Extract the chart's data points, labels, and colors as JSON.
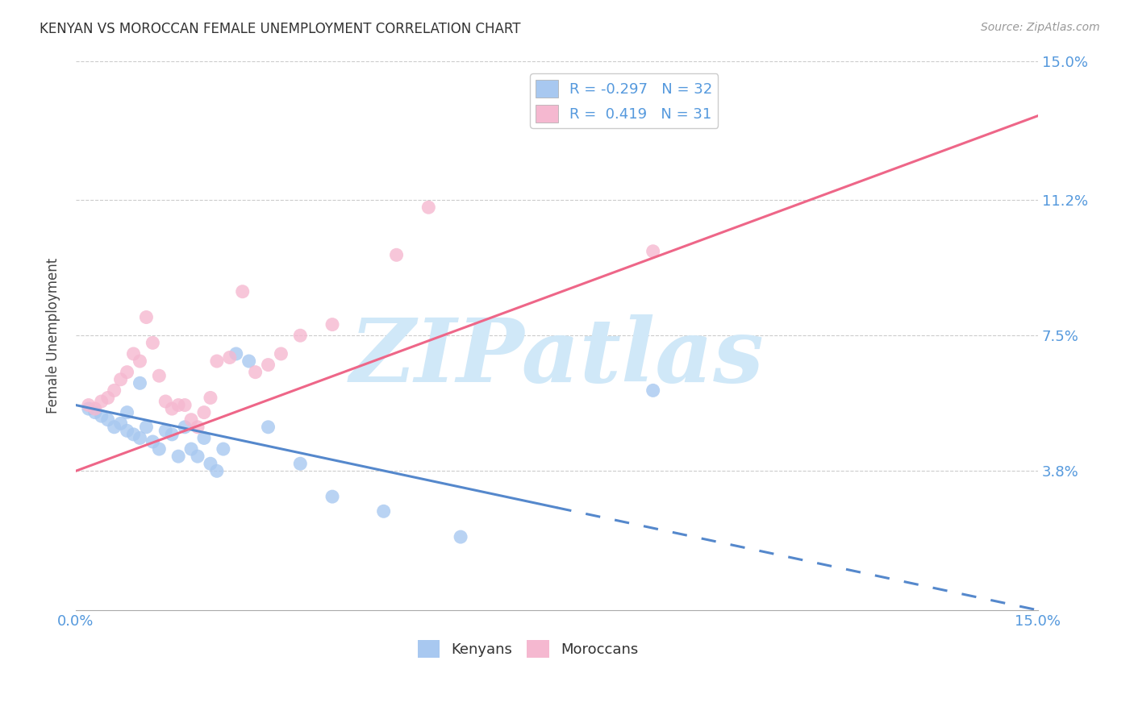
{
  "title": "KENYAN VS MOROCCAN FEMALE UNEMPLOYMENT CORRELATION CHART",
  "source": "Source: ZipAtlas.com",
  "ylabel": "Female Unemployment",
  "xlim": [
    0.0,
    0.15
  ],
  "ylim": [
    0.0,
    0.15
  ],
  "yticks": [
    0.038,
    0.075,
    0.112,
    0.15
  ],
  "ytick_labels": [
    "3.8%",
    "7.5%",
    "11.2%",
    "15.0%"
  ],
  "xtick_labels": [
    "0.0%",
    "15.0%"
  ],
  "xtick_pos": [
    0.0,
    0.15
  ],
  "legend_r_kenya": "-0.297",
  "legend_n_kenya": "32",
  "legend_r_morocco": "0.419",
  "legend_n_morocco": "31",
  "kenya_color": "#a8c8f0",
  "morocco_color": "#f5b8d0",
  "kenya_line_color": "#5588cc",
  "morocco_line_color": "#ee6688",
  "axis_label_color": "#5599dd",
  "background_color": "#ffffff",
  "kenya_line_solid_end": 0.075,
  "kenya_line_start_y": 0.056,
  "kenya_line_end_y": 0.0,
  "morocco_line_start_y": 0.038,
  "morocco_line_end_y": 0.135,
  "watermark": "ZIPatlas",
  "watermark_color": "#d0e8f8",
  "kenya_x": [
    0.002,
    0.003,
    0.004,
    0.005,
    0.006,
    0.007,
    0.008,
    0.008,
    0.009,
    0.01,
    0.01,
    0.011,
    0.012,
    0.013,
    0.014,
    0.015,
    0.016,
    0.017,
    0.018,
    0.019,
    0.02,
    0.021,
    0.022,
    0.023,
    0.025,
    0.027,
    0.03,
    0.035,
    0.04,
    0.048,
    0.06,
    0.09
  ],
  "kenya_y": [
    0.055,
    0.054,
    0.053,
    0.052,
    0.05,
    0.051,
    0.049,
    0.054,
    0.048,
    0.047,
    0.062,
    0.05,
    0.046,
    0.044,
    0.049,
    0.048,
    0.042,
    0.05,
    0.044,
    0.042,
    0.047,
    0.04,
    0.038,
    0.044,
    0.07,
    0.068,
    0.05,
    0.04,
    0.031,
    0.027,
    0.02,
    0.06
  ],
  "morocco_x": [
    0.002,
    0.003,
    0.004,
    0.005,
    0.006,
    0.007,
    0.008,
    0.009,
    0.01,
    0.011,
    0.012,
    0.013,
    0.014,
    0.015,
    0.016,
    0.017,
    0.018,
    0.019,
    0.02,
    0.021,
    0.022,
    0.024,
    0.026,
    0.028,
    0.03,
    0.032,
    0.035,
    0.04,
    0.05,
    0.055,
    0.09
  ],
  "morocco_y": [
    0.056,
    0.055,
    0.057,
    0.058,
    0.06,
    0.063,
    0.065,
    0.07,
    0.068,
    0.08,
    0.073,
    0.064,
    0.057,
    0.055,
    0.056,
    0.056,
    0.052,
    0.05,
    0.054,
    0.058,
    0.068,
    0.069,
    0.087,
    0.065,
    0.067,
    0.07,
    0.075,
    0.078,
    0.097,
    0.11,
    0.098
  ]
}
